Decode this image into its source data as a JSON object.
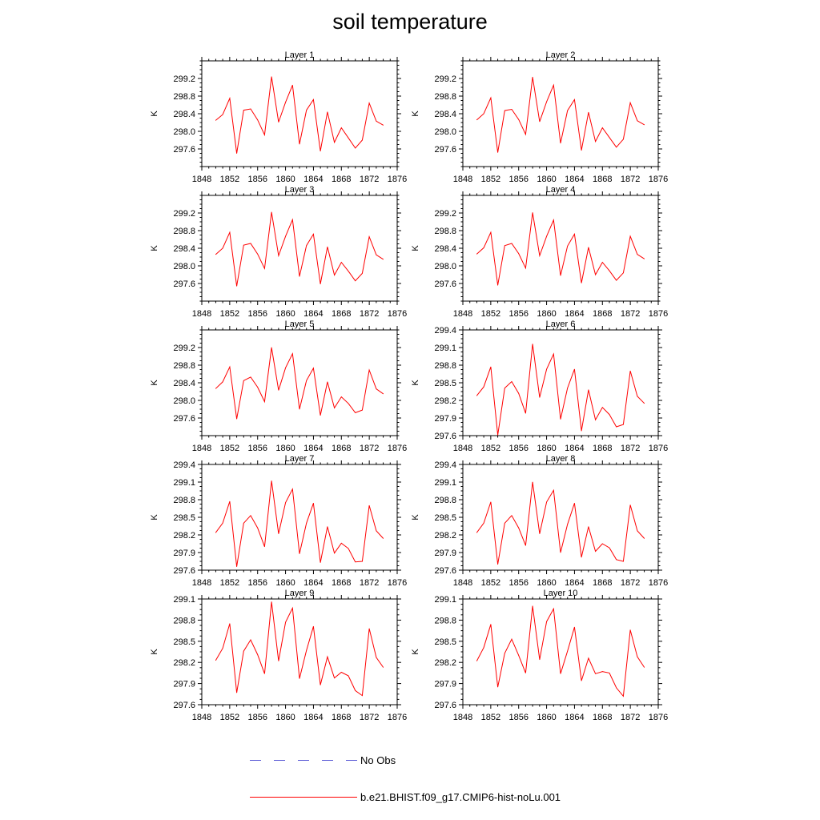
{
  "title": "soil temperature",
  "legend": [
    {
      "label": "No Obs",
      "color": "#5b5bd6",
      "style": "dashed"
    },
    {
      "label": "b.e21.BHIST.f09_g17.CMIP6-hist-noLu.001",
      "color": "#ff0000",
      "style": "solid"
    }
  ],
  "chart_data": [
    {
      "type": "line",
      "title": "Layer 1",
      "ylabel": "K",
      "xlim": [
        1848,
        1876
      ],
      "ylim": [
        297.2,
        299.6
      ],
      "xticks": [
        "1848",
        "1852",
        "1856",
        "1860",
        "1864",
        "1868",
        "1872",
        "1876"
      ],
      "yticks": [
        "297.6",
        "298.0",
        "298.4",
        "298.8",
        "299.2"
      ],
      "x": [
        1850,
        1851,
        1852,
        1853,
        1854,
        1855,
        1856,
        1857,
        1858,
        1859,
        1860,
        1861,
        1862,
        1863,
        1864,
        1865,
        1866,
        1867,
        1868,
        1869,
        1870,
        1871,
        1872,
        1873,
        1874
      ],
      "series": [
        {
          "name": "b.e21.BHIST.f09_g17.CMIP6-hist-noLu.001",
          "values": [
            298.25,
            298.38,
            298.75,
            297.5,
            298.48,
            298.51,
            298.26,
            297.92,
            299.24,
            298.21,
            298.66,
            299.05,
            297.71,
            298.48,
            298.72,
            297.55,
            298.44,
            297.75,
            298.08,
            297.85,
            297.62,
            297.8,
            298.64,
            298.23,
            298.14
          ]
        }
      ]
    },
    {
      "type": "line",
      "title": "Layer 2",
      "ylabel": "K",
      "xlim": [
        1848,
        1876
      ],
      "ylim": [
        297.2,
        299.6
      ],
      "xticks": [
        "1848",
        "1852",
        "1856",
        "1860",
        "1864",
        "1868",
        "1872",
        "1876"
      ],
      "yticks": [
        "297.6",
        "298.0",
        "298.4",
        "298.8",
        "299.2"
      ],
      "x": [
        1850,
        1851,
        1852,
        1853,
        1854,
        1855,
        1856,
        1857,
        1858,
        1859,
        1860,
        1861,
        1862,
        1863,
        1864,
        1865,
        1866,
        1867,
        1868,
        1869,
        1870,
        1871,
        1872,
        1873,
        1874
      ],
      "series": [
        {
          "name": "b.e21.BHIST.f09_g17.CMIP6-hist-noLu.001",
          "values": [
            298.26,
            298.4,
            298.76,
            297.52,
            298.47,
            298.5,
            298.27,
            297.93,
            299.23,
            298.22,
            298.67,
            299.05,
            297.73,
            298.47,
            298.72,
            297.57,
            298.43,
            297.77,
            298.08,
            297.86,
            297.64,
            297.82,
            298.65,
            298.24,
            298.15
          ]
        }
      ]
    },
    {
      "type": "line",
      "title": "Layer 3",
      "ylabel": "K",
      "xlim": [
        1848,
        1876
      ],
      "ylim": [
        297.2,
        299.6
      ],
      "xticks": [
        "1848",
        "1852",
        "1856",
        "1860",
        "1864",
        "1868",
        "1872",
        "1876"
      ],
      "yticks": [
        "297.6",
        "298.0",
        "298.4",
        "298.8",
        "299.2"
      ],
      "x": [
        1850,
        1851,
        1852,
        1853,
        1854,
        1855,
        1856,
        1857,
        1858,
        1859,
        1860,
        1861,
        1862,
        1863,
        1864,
        1865,
        1866,
        1867,
        1868,
        1869,
        1870,
        1871,
        1872,
        1873,
        1874
      ],
      "series": [
        {
          "name": "b.e21.BHIST.f09_g17.CMIP6-hist-noLu.001",
          "values": [
            298.26,
            298.4,
            298.76,
            297.54,
            298.47,
            298.51,
            298.27,
            297.94,
            299.22,
            298.23,
            298.67,
            299.05,
            297.76,
            298.46,
            298.72,
            297.59,
            298.43,
            297.79,
            298.08,
            297.88,
            297.66,
            297.83,
            298.66,
            298.25,
            298.15
          ]
        }
      ]
    },
    {
      "type": "line",
      "title": "Layer 4",
      "ylabel": "K",
      "xlim": [
        1848,
        1876
      ],
      "ylim": [
        297.2,
        299.6
      ],
      "xticks": [
        "1848",
        "1852",
        "1856",
        "1860",
        "1864",
        "1868",
        "1872",
        "1876"
      ],
      "yticks": [
        "297.6",
        "298.0",
        "298.4",
        "298.8",
        "299.2"
      ],
      "x": [
        1850,
        1851,
        1852,
        1853,
        1854,
        1855,
        1856,
        1857,
        1858,
        1859,
        1860,
        1861,
        1862,
        1863,
        1864,
        1865,
        1866,
        1867,
        1868,
        1869,
        1870,
        1871,
        1872,
        1873,
        1874
      ],
      "series": [
        {
          "name": "b.e21.BHIST.f09_g17.CMIP6-hist-noLu.001",
          "values": [
            298.27,
            298.41,
            298.76,
            297.56,
            298.46,
            298.51,
            298.28,
            297.95,
            299.21,
            298.23,
            298.67,
            299.04,
            297.78,
            298.45,
            298.72,
            297.61,
            298.42,
            297.8,
            298.08,
            297.89,
            297.67,
            297.84,
            298.67,
            298.26,
            298.16
          ]
        }
      ]
    },
    {
      "type": "line",
      "title": "Layer 5",
      "ylabel": "K",
      "xlim": [
        1848,
        1876
      ],
      "ylim": [
        297.2,
        299.6
      ],
      "xticks": [
        "1848",
        "1852",
        "1856",
        "1860",
        "1864",
        "1868",
        "1872",
        "1876"
      ],
      "yticks": [
        "297.6",
        "298.0",
        "298.4",
        "298.8",
        "299.2"
      ],
      "x": [
        1850,
        1851,
        1852,
        1853,
        1854,
        1855,
        1856,
        1857,
        1858,
        1859,
        1860,
        1861,
        1862,
        1863,
        1864,
        1865,
        1866,
        1867,
        1868,
        1869,
        1870,
        1871,
        1872,
        1873,
        1874
      ],
      "series": [
        {
          "name": "b.e21.BHIST.f09_g17.CMIP6-hist-noLu.001",
          "values": [
            298.27,
            298.42,
            298.76,
            297.58,
            298.45,
            298.53,
            298.3,
            297.97,
            299.2,
            298.23,
            298.74,
            299.06,
            297.8,
            298.45,
            298.73,
            297.66,
            298.42,
            297.83,
            298.08,
            297.93,
            297.72,
            297.78,
            298.69,
            298.26,
            298.15
          ]
        }
      ]
    },
    {
      "type": "line",
      "title": "Layer 6",
      "ylabel": "K",
      "xlim": [
        1848,
        1876
      ],
      "ylim": [
        297.6,
        299.4
      ],
      "xticks": [
        "1848",
        "1852",
        "1856",
        "1860",
        "1864",
        "1868",
        "1872",
        "1876"
      ],
      "yticks": [
        "297.6",
        "297.9",
        "298.2",
        "298.5",
        "298.8",
        "299.1",
        "299.4"
      ],
      "x": [
        1850,
        1851,
        1852,
        1853,
        1854,
        1855,
        1856,
        1857,
        1858,
        1859,
        1860,
        1861,
        1862,
        1863,
        1864,
        1865,
        1866,
        1867,
        1868,
        1869,
        1870,
        1871,
        1872,
        1873,
        1874
      ],
      "series": [
        {
          "name": "b.e21.BHIST.f09_g17.CMIP6-hist-noLu.001",
          "values": [
            298.28,
            298.43,
            298.77,
            297.61,
            298.41,
            298.52,
            298.32,
            297.98,
            299.16,
            298.25,
            298.73,
            298.99,
            297.88,
            298.41,
            298.73,
            297.68,
            298.38,
            297.87,
            298.08,
            297.96,
            297.75,
            297.79,
            298.7,
            298.27,
            298.15
          ]
        }
      ]
    },
    {
      "type": "line",
      "title": "Layer 7",
      "ylabel": "K",
      "xlim": [
        1848,
        1876
      ],
      "ylim": [
        297.6,
        299.4
      ],
      "xticks": [
        "1848",
        "1852",
        "1856",
        "1860",
        "1864",
        "1868",
        "1872",
        "1876"
      ],
      "yticks": [
        "297.6",
        "297.9",
        "298.2",
        "298.5",
        "298.8",
        "299.1",
        "299.4"
      ],
      "x": [
        1850,
        1851,
        1852,
        1853,
        1854,
        1855,
        1856,
        1857,
        1858,
        1859,
        1860,
        1861,
        1862,
        1863,
        1864,
        1865,
        1866,
        1867,
        1868,
        1869,
        1870,
        1871,
        1872,
        1873,
        1874
      ],
      "series": [
        {
          "name": "b.e21.BHIST.f09_g17.CMIP6-hist-noLu.001",
          "values": [
            298.24,
            298.4,
            298.77,
            297.66,
            298.4,
            298.53,
            298.32,
            298.0,
            299.12,
            298.22,
            298.75,
            298.98,
            297.88,
            298.4,
            298.74,
            297.73,
            298.34,
            297.89,
            298.06,
            297.97,
            297.74,
            297.75,
            298.7,
            298.27,
            298.14
          ]
        }
      ]
    },
    {
      "type": "line",
      "title": "Layer 8",
      "ylabel": "K",
      "xlim": [
        1848,
        1876
      ],
      "ylim": [
        297.6,
        299.4
      ],
      "xticks": [
        "1848",
        "1852",
        "1856",
        "1860",
        "1864",
        "1868",
        "1872",
        "1876"
      ],
      "yticks": [
        "297.6",
        "297.9",
        "298.2",
        "298.5",
        "298.8",
        "299.1",
        "299.4"
      ],
      "x": [
        1850,
        1851,
        1852,
        1853,
        1854,
        1855,
        1856,
        1857,
        1858,
        1859,
        1860,
        1861,
        1862,
        1863,
        1864,
        1865,
        1866,
        1867,
        1868,
        1869,
        1870,
        1871,
        1872,
        1873,
        1874
      ],
      "series": [
        {
          "name": "b.e21.BHIST.f09_g17.CMIP6-hist-noLu.001",
          "values": [
            298.24,
            298.4,
            298.76,
            297.7,
            298.4,
            298.53,
            298.32,
            298.02,
            299.1,
            298.22,
            298.76,
            298.96,
            297.9,
            298.38,
            298.74,
            297.82,
            298.34,
            297.92,
            298.05,
            297.98,
            297.78,
            297.75,
            298.71,
            298.27,
            298.14
          ]
        }
      ]
    },
    {
      "type": "line",
      "title": "Layer 9",
      "ylabel": "K",
      "xlim": [
        1848,
        1876
      ],
      "ylim": [
        297.6,
        299.1
      ],
      "xticks": [
        "1848",
        "1852",
        "1856",
        "1860",
        "1864",
        "1868",
        "1872",
        "1876"
      ],
      "yticks": [
        "297.6",
        "297.9",
        "298.2",
        "298.5",
        "298.8",
        "299.1"
      ],
      "x": [
        1850,
        1851,
        1852,
        1853,
        1854,
        1855,
        1856,
        1857,
        1858,
        1859,
        1860,
        1861,
        1862,
        1863,
        1864,
        1865,
        1866,
        1867,
        1868,
        1869,
        1870,
        1871,
        1872,
        1873,
        1874
      ],
      "series": [
        {
          "name": "b.e21.BHIST.f09_g17.CMIP6-hist-noLu.001",
          "values": [
            298.23,
            298.4,
            298.75,
            297.77,
            298.36,
            298.52,
            298.31,
            298.04,
            299.06,
            298.22,
            298.77,
            298.97,
            297.97,
            298.37,
            298.71,
            297.88,
            298.28,
            297.98,
            298.06,
            298.01,
            297.8,
            297.73,
            298.68,
            298.27,
            298.13
          ]
        }
      ]
    },
    {
      "type": "line",
      "title": "Layer 10",
      "ylabel": "K",
      "xlim": [
        1848,
        1876
      ],
      "ylim": [
        297.6,
        299.1
      ],
      "xticks": [
        "1848",
        "1852",
        "1856",
        "1860",
        "1864",
        "1868",
        "1872",
        "1876"
      ],
      "yticks": [
        "297.6",
        "297.9",
        "298.2",
        "298.5",
        "298.8",
        "299.1"
      ],
      "x": [
        1850,
        1851,
        1852,
        1853,
        1854,
        1855,
        1856,
        1857,
        1858,
        1859,
        1860,
        1861,
        1862,
        1863,
        1864,
        1865,
        1866,
        1867,
        1868,
        1869,
        1870,
        1871,
        1872,
        1873,
        1874
      ],
      "series": [
        {
          "name": "b.e21.BHIST.f09_g17.CMIP6-hist-noLu.001",
          "values": [
            298.22,
            298.41,
            298.74,
            297.85,
            298.33,
            298.53,
            298.3,
            298.05,
            299.0,
            298.24,
            298.78,
            298.96,
            298.04,
            298.36,
            298.7,
            297.94,
            298.26,
            298.04,
            298.07,
            298.05,
            297.84,
            297.72,
            298.66,
            298.28,
            298.13
          ]
        }
      ]
    }
  ]
}
